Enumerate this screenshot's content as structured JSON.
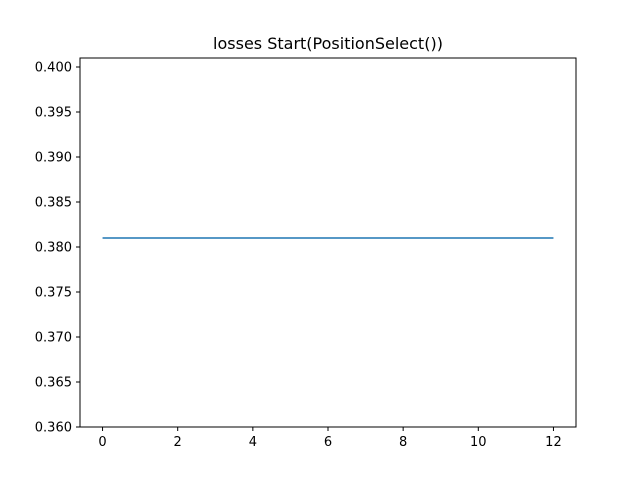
{
  "chart_data": {
    "type": "line",
    "title": "losses Start(PositionSelect())",
    "xlabel": "",
    "ylabel": "",
    "xlim": [
      -0.6,
      12.6
    ],
    "ylim": [
      0.36,
      0.401
    ],
    "x_ticks": [
      0,
      2,
      4,
      6,
      8,
      10,
      12
    ],
    "x_tick_labels": [
      "0",
      "2",
      "4",
      "6",
      "8",
      "10",
      "12"
    ],
    "y_ticks": [
      0.36,
      0.365,
      0.37,
      0.375,
      0.38,
      0.385,
      0.39,
      0.395,
      0.4
    ],
    "y_tick_labels": [
      "0.360",
      "0.365",
      "0.370",
      "0.375",
      "0.380",
      "0.385",
      "0.390",
      "0.395",
      "0.400"
    ],
    "grid": false,
    "legend": "none",
    "series": [
      {
        "color": "#1f77b4",
        "x": [
          0,
          1,
          2,
          3,
          4,
          5,
          6,
          7,
          8,
          9,
          10,
          11,
          12
        ],
        "values": [
          0.381,
          0.381,
          0.381,
          0.381,
          0.381,
          0.381,
          0.381,
          0.381,
          0.381,
          0.381,
          0.381,
          0.381,
          0.381
        ]
      }
    ]
  }
}
